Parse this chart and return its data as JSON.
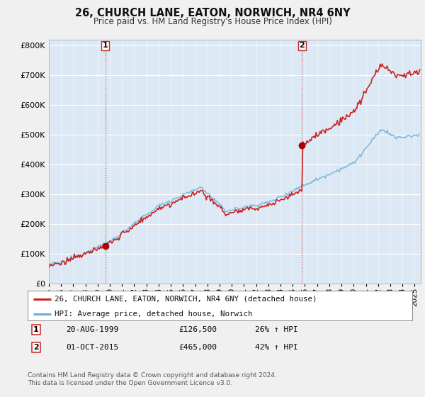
{
  "title": "26, CHURCH LANE, EATON, NORWICH, NR4 6NY",
  "subtitle": "Price paid vs. HM Land Registry's House Price Index (HPI)",
  "legend_line1": "26, CHURCH LANE, EATON, NORWICH, NR4 6NY (detached house)",
  "legend_line2": "HPI: Average price, detached house, Norwich",
  "transaction1_date": "20-AUG-1999",
  "transaction1_price": "£126,500",
  "transaction1_hpi": "26% ↑ HPI",
  "transaction2_date": "01-OCT-2015",
  "transaction2_price": "£465,000",
  "transaction2_hpi": "42% ↑ HPI",
  "footnote": "Contains HM Land Registry data © Crown copyright and database right 2024.\nThis data is licensed under the Open Government Licence v3.0.",
  "hpi_color": "#6baed6",
  "price_color": "#cc2222",
  "marker_color": "#aa0000",
  "background_color": "#f0f0f0",
  "plot_bg_color": "#dce9f5",
  "grid_color": "#ffffff",
  "ylim": [
    0,
    820000
  ],
  "yticks": [
    0,
    100000,
    200000,
    300000,
    400000,
    500000,
    600000,
    700000,
    800000
  ],
  "xlim_start": 1995.0,
  "xlim_end": 2025.5,
  "transaction1_x": 1999.63,
  "transaction1_y": 126500,
  "transaction2_x": 2015.75,
  "transaction2_y": 465000
}
